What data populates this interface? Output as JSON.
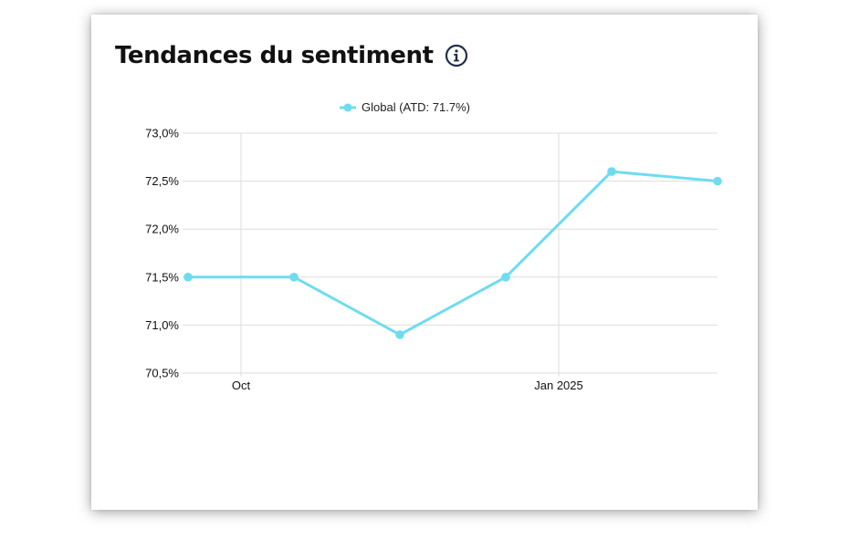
{
  "header": {
    "title": "Tendances du sentiment",
    "info_icon": "info-circle-icon"
  },
  "colors": {
    "series": "#6edcf0",
    "grid": "#dddddd",
    "title": "#111111",
    "icon": "#1f2f46"
  },
  "chart_data": {
    "type": "line",
    "title": "Tendances du sentiment",
    "xlabel": "",
    "ylabel": "",
    "x_ticks": [
      {
        "label": "Oct",
        "position": 0.5
      },
      {
        "label": "Jan 2025",
        "position": 3.5
      }
    ],
    "y_ticks": [
      "70,5%",
      "71,0%",
      "71,5%",
      "72,0%",
      "72,5%",
      "73,0%"
    ],
    "y_tick_values": [
      70.5,
      71.0,
      71.5,
      72.0,
      72.5,
      73.0
    ],
    "ylim": [
      70.5,
      73.0
    ],
    "xlim": [
      0,
      5
    ],
    "grid": true,
    "legend_position": "top-center",
    "series": [
      {
        "name": "Global (ATD: 71.7%)",
        "x": [
          0,
          1,
          2,
          3,
          4,
          5
        ],
        "values": [
          71.5,
          71.5,
          70.9,
          71.5,
          72.6,
          72.5
        ]
      }
    ]
  }
}
